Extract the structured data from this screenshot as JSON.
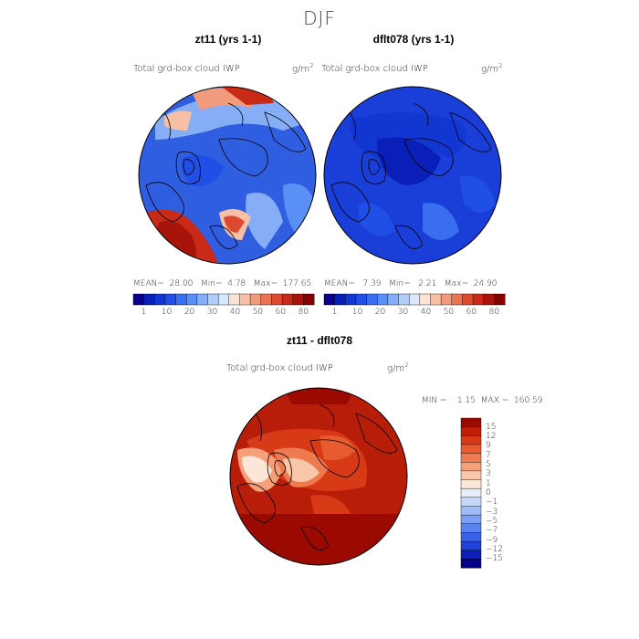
{
  "title": "DJF",
  "panels": [
    {
      "title": "zt11 (yrs 1-1)",
      "variable": "Total grd-box cloud IWP",
      "units_base": "g/m",
      "units_exp": "2",
      "stats": {
        "mean_label": "MEAN=",
        "mean": "28.00",
        "min_label": "Min=",
        "min": "4.78",
        "max_label": "Max=",
        "max": "177.65"
      },
      "map_fill": "#2f5fe0"
    },
    {
      "title": "dflt078 (yrs 1-1)",
      "variable": "Total grd-box cloud IWP",
      "units_base": "g/m",
      "units_exp": "2",
      "stats": {
        "mean_label": "MEAN=",
        "mean": "7.39",
        "min_label": "Min=",
        "min": "2.21",
        "max_label": "Max=",
        "max": "24.90"
      },
      "map_fill": "#1a3fd8"
    }
  ],
  "top_colorbar": {
    "colors": [
      "#08008a",
      "#0a1fb8",
      "#1236d2",
      "#1f4fe6",
      "#3a6ef0",
      "#5a8ff5",
      "#86aef7",
      "#b3cdf9",
      "#dbe8fb",
      "#fbe3d6",
      "#f7c0a6",
      "#f29b7c",
      "#e97354",
      "#dd4a30",
      "#c92a17",
      "#a8140a",
      "#850000"
    ],
    "ticks": [
      "1",
      "10",
      "20",
      "30",
      "40",
      "50",
      "60",
      "80"
    ]
  },
  "diff": {
    "title": "zt11 - dflt078",
    "variable": "Total grd-box cloud IWP",
    "units_base": "g/m",
    "units_exp": "2",
    "stats": {
      "min_label": "MIN =",
      "min": "1.15",
      "max_label": "MAX =",
      "max": "160.59"
    },
    "map_fill": "#b81d0a",
    "colorbar": {
      "colors": [
        "#9a0a00",
        "#c01e05",
        "#d83a18",
        "#e85a2f",
        "#f07a4f",
        "#f5a07a",
        "#f8c6a8",
        "#fbe6d8",
        "#e6eefb",
        "#c6d8fa",
        "#9fbcf7",
        "#7a9ff3",
        "#5a82ef",
        "#3a62e8",
        "#2042d8",
        "#0c20b8",
        "#04008a"
      ],
      "ticks": [
        "15",
        "12",
        "9",
        "7",
        "5",
        "3",
        "1",
        "0",
        "−1",
        "−3",
        "−5",
        "−7",
        "−9",
        "−12",
        "−15"
      ]
    }
  }
}
